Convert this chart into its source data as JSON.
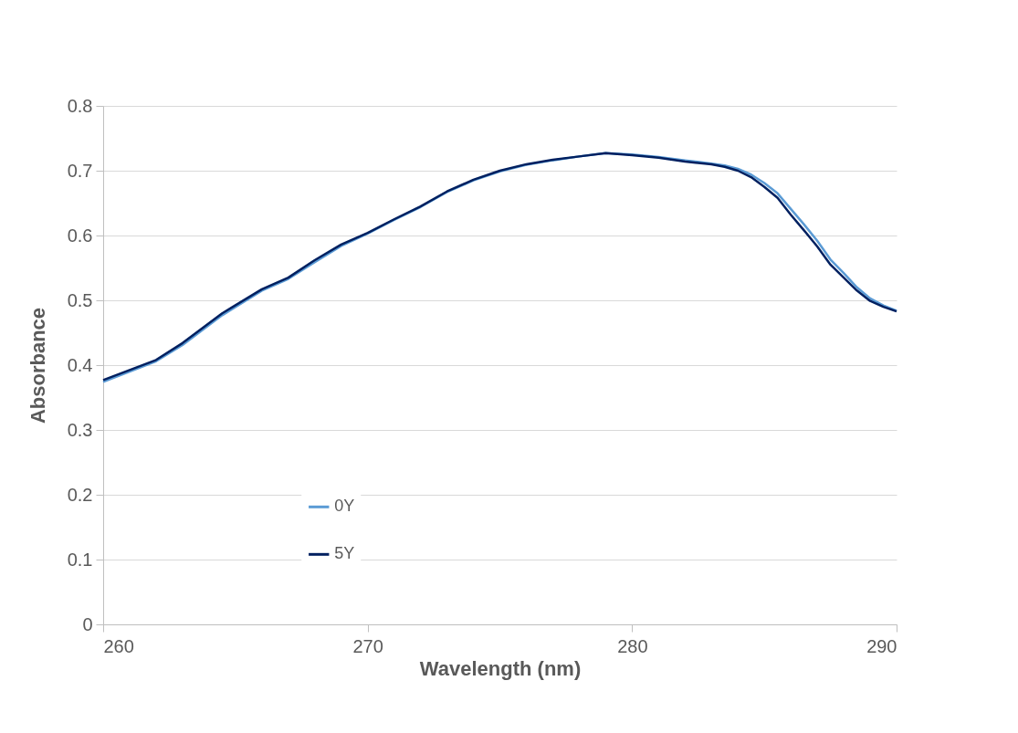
{
  "chart_data": {
    "type": "line",
    "xlabel": "Wavelength (nm)",
    "ylabel": "Absorbance",
    "x": [
      260,
      262,
      263,
      264.5,
      266,
      267,
      268,
      269,
      270,
      271,
      272,
      273,
      274,
      275,
      276,
      277,
      278,
      279,
      280,
      281,
      282,
      283,
      283.5,
      284,
      284.5,
      285,
      285.5,
      286,
      286.5,
      287,
      287.5,
      288,
      288.5,
      289,
      289.5,
      290
    ],
    "series": [
      {
        "name": "0Y",
        "color": "#5b9bd5",
        "values": [
          0.374,
          0.406,
          0.431,
          0.477,
          0.515,
          0.533,
          0.559,
          0.584,
          0.603,
          0.624,
          0.644,
          0.667,
          0.685,
          0.699,
          0.709,
          0.716,
          0.722,
          0.727,
          0.725,
          0.721,
          0.716,
          0.711,
          0.708,
          0.703,
          0.694,
          0.681,
          0.665,
          0.641,
          0.617,
          0.592,
          0.563,
          0.542,
          0.52,
          0.503,
          0.492,
          0.484
        ]
      },
      {
        "name": "5Y",
        "color": "#002060",
        "values": [
          0.377,
          0.408,
          0.434,
          0.48,
          0.517,
          0.535,
          0.562,
          0.586,
          0.604,
          0.625,
          0.645,
          0.668,
          0.686,
          0.7,
          0.71,
          0.717,
          0.722,
          0.727,
          0.724,
          0.72,
          0.714,
          0.71,
          0.706,
          0.7,
          0.69,
          0.675,
          0.658,
          0.632,
          0.608,
          0.583,
          0.555,
          0.535,
          0.515,
          0.499,
          0.49,
          0.483
        ]
      }
    ],
    "xlim": [
      260,
      290
    ],
    "xticks": [
      260,
      270,
      280,
      290
    ],
    "ylim": [
      0,
      0.8
    ],
    "yticks": [
      0,
      0.1,
      0.2,
      0.3,
      0.4,
      0.5,
      0.6,
      0.7,
      0.8
    ],
    "grid": "y",
    "legend": "bottom left",
    "marker": "none",
    "line_style": "solid"
  }
}
